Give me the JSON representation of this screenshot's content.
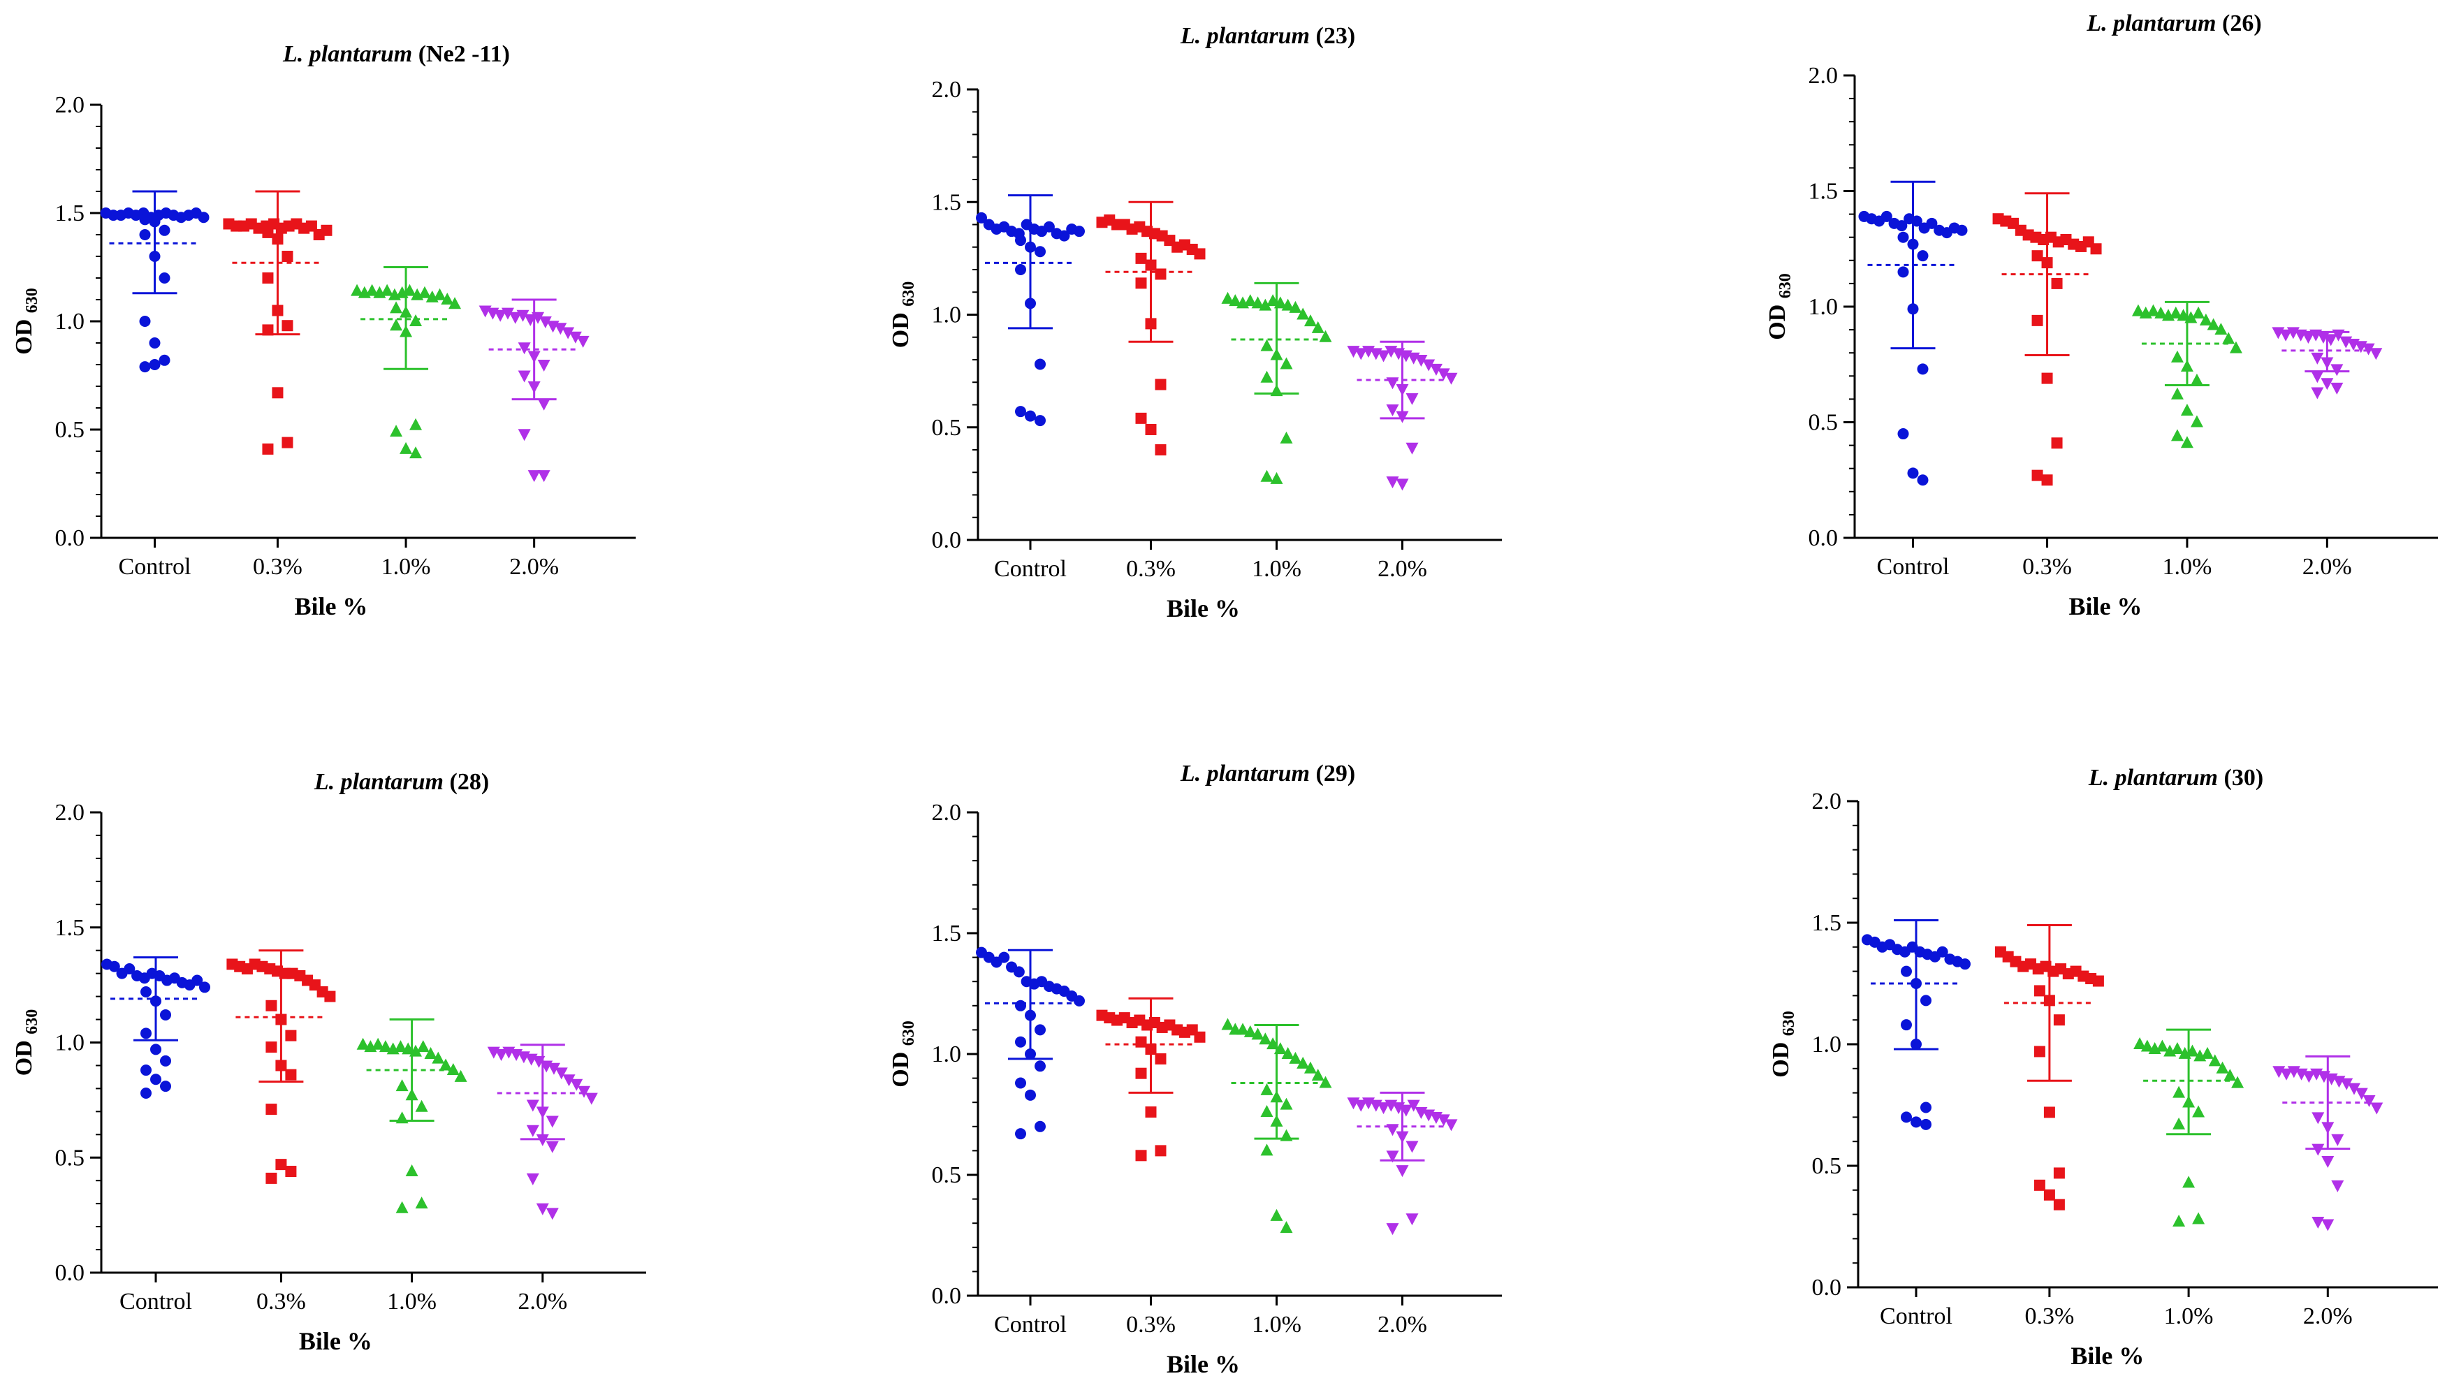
{
  "figure": {
    "ylabel": "OD",
    "ylabel_subscript": "630",
    "xlabel": "Bile %",
    "series_colors": {
      "Control": "#0a14d8",
      "0.3%": "#e8141a",
      "1.0%": "#2cc12c",
      "2.0%": "#b030e8"
    }
  },
  "chart_data": [
    {
      "type": "scatter",
      "title_italic": "L. plantarum",
      "title_suffix": " (Ne2 -11)",
      "xlabel": "Bile %",
      "ylabel": "OD 630",
      "ylim": [
        0,
        2.0
      ],
      "yticks": [
        "0.0",
        "0.5",
        "1.0",
        "1.5",
        "2.0"
      ],
      "categories": [
        "Control",
        "0.3%",
        "1.0%",
        "2.0%"
      ],
      "series": [
        {
          "name": "Control",
          "color": "#0a14d8",
          "marker": "circle",
          "mean": 1.36,
          "sd_upper": 1.6,
          "sd_lower": 1.13,
          "dash_color": "#0a14d8",
          "values": [
            1.5,
            1.49,
            1.49,
            1.5,
            1.49,
            1.5,
            1.48,
            1.49,
            1.5,
            1.49,
            1.48,
            1.49,
            1.5,
            1.48,
            1.47,
            1.46,
            1.42,
            1.4,
            1.3,
            1.2,
            1.0,
            0.9,
            0.82,
            0.79,
            0.8
          ]
        },
        {
          "name": "0.3%",
          "color": "#e8141a",
          "marker": "square",
          "mean": 1.27,
          "sd_upper": 1.6,
          "sd_lower": 0.94,
          "dash_color": "#e8141a",
          "values": [
            1.45,
            1.44,
            1.44,
            1.45,
            1.43,
            1.44,
            1.45,
            1.43,
            1.44,
            1.45,
            1.43,
            1.44,
            1.4,
            1.42,
            1.41,
            1.38,
            1.3,
            1.2,
            1.05,
            0.98,
            0.96,
            0.67,
            0.44,
            0.41
          ]
        },
        {
          "name": "1.0%",
          "color": "#2cc12c",
          "marker": "triangle-up",
          "mean": 1.01,
          "sd_upper": 1.25,
          "sd_lower": 0.78,
          "dash_color": "#2cc12c",
          "values": [
            1.14,
            1.13,
            1.14,
            1.13,
            1.14,
            1.12,
            1.13,
            1.14,
            1.12,
            1.13,
            1.11,
            1.12,
            1.1,
            1.08,
            1.06,
            1.04,
            1.0,
            0.98,
            0.95,
            0.52,
            0.49,
            0.41,
            0.39
          ]
        },
        {
          "name": "2.0%",
          "color": "#b030e8",
          "marker": "triangle-down",
          "mean": 0.87,
          "sd_upper": 1.1,
          "sd_lower": 0.64,
          "dash_color": "#b030e8",
          "values": [
            1.05,
            1.04,
            1.03,
            1.04,
            1.02,
            1.03,
            1.01,
            1.02,
            1.0,
            0.98,
            0.97,
            0.95,
            0.93,
            0.91,
            0.88,
            0.84,
            0.8,
            0.75,
            0.7,
            0.62,
            0.48,
            0.29,
            0.29
          ]
        }
      ]
    },
    {
      "type": "scatter",
      "title_italic": "L. plantarum",
      "title_suffix": " (23)",
      "xlabel": "Bile %",
      "ylabel": "OD 630",
      "ylim": [
        0,
        2.0
      ],
      "yticks": [
        "0.0",
        "0.5",
        "1.0",
        "1.5",
        "2.0"
      ],
      "categories": [
        "Control",
        "0.3%",
        "1.0%",
        "2.0%"
      ],
      "series": [
        {
          "name": "Control",
          "color": "#0a14d8",
          "marker": "circle",
          "mean": 1.23,
          "sd_upper": 1.53,
          "sd_lower": 0.94,
          "dash_color": "#0a14d8",
          "values": [
            1.43,
            1.4,
            1.38,
            1.39,
            1.37,
            1.36,
            1.4,
            1.38,
            1.37,
            1.39,
            1.36,
            1.35,
            1.38,
            1.37,
            1.33,
            1.3,
            1.28,
            1.2,
            1.05,
            0.78,
            0.57,
            0.55,
            0.53
          ]
        },
        {
          "name": "0.3%",
          "color": "#e8141a",
          "marker": "square",
          "mean": 1.19,
          "sd_upper": 1.5,
          "sd_lower": 0.88,
          "dash_color": "#e8141a",
          "values": [
            1.41,
            1.42,
            1.4,
            1.4,
            1.38,
            1.39,
            1.37,
            1.36,
            1.35,
            1.33,
            1.3,
            1.31,
            1.29,
            1.27,
            1.25,
            1.22,
            1.18,
            1.14,
            0.96,
            0.69,
            0.54,
            0.49,
            0.4
          ]
        },
        {
          "name": "1.0%",
          "color": "#2cc12c",
          "marker": "triangle-up",
          "mean": 0.89,
          "sd_upper": 1.14,
          "sd_lower": 0.65,
          "dash_color": "#2cc12c",
          "values": [
            1.07,
            1.06,
            1.05,
            1.06,
            1.05,
            1.04,
            1.06,
            1.05,
            1.04,
            1.03,
            1.0,
            0.97,
            0.94,
            0.9,
            0.86,
            0.82,
            0.78,
            0.72,
            0.66,
            0.45,
            0.28,
            0.27
          ]
        },
        {
          "name": "2.0%",
          "color": "#b030e8",
          "marker": "triangle-down",
          "mean": 0.71,
          "sd_upper": 0.88,
          "sd_lower": 0.54,
          "dash_color": "#b030e8",
          "values": [
            0.84,
            0.83,
            0.84,
            0.83,
            0.82,
            0.84,
            0.83,
            0.82,
            0.81,
            0.8,
            0.78,
            0.76,
            0.74,
            0.72,
            0.7,
            0.67,
            0.63,
            0.58,
            0.55,
            0.41,
            0.26,
            0.25
          ]
        }
      ]
    },
    {
      "type": "scatter",
      "title_italic": "L. plantarum",
      "title_suffix": " (26)",
      "xlabel": "Bile %",
      "ylabel": "OD 630",
      "ylim": [
        0,
        2.0
      ],
      "yticks": [
        "0.0",
        "0.5",
        "1.0",
        "1.5",
        "2.0"
      ],
      "categories": [
        "Control",
        "0.3%",
        "1.0%",
        "2.0%"
      ],
      "series": [
        {
          "name": "Control",
          "color": "#0a14d8",
          "marker": "circle",
          "mean": 1.18,
          "sd_upper": 1.54,
          "sd_lower": 0.82,
          "dash_color": "#0a14d8",
          "values": [
            1.39,
            1.38,
            1.37,
            1.39,
            1.36,
            1.35,
            1.38,
            1.37,
            1.34,
            1.36,
            1.33,
            1.32,
            1.34,
            1.33,
            1.3,
            1.27,
            1.22,
            1.15,
            0.99,
            0.73,
            0.45,
            0.28,
            0.25
          ]
        },
        {
          "name": "0.3%",
          "color": "#e8141a",
          "marker": "square",
          "mean": 1.14,
          "sd_upper": 1.49,
          "sd_lower": 0.79,
          "dash_color": "#e8141a",
          "values": [
            1.38,
            1.37,
            1.36,
            1.33,
            1.31,
            1.3,
            1.29,
            1.3,
            1.28,
            1.29,
            1.27,
            1.26,
            1.28,
            1.25,
            1.22,
            1.19,
            1.1,
            0.94,
            0.69,
            0.41,
            0.27,
            0.25
          ]
        },
        {
          "name": "1.0%",
          "color": "#2cc12c",
          "marker": "triangle-up",
          "mean": 0.84,
          "sd_upper": 1.02,
          "sd_lower": 0.66,
          "dash_color": "#2cc12c",
          "values": [
            0.98,
            0.97,
            0.98,
            0.97,
            0.96,
            0.97,
            0.96,
            0.95,
            0.97,
            0.94,
            0.92,
            0.9,
            0.86,
            0.82,
            0.78,
            0.74,
            0.68,
            0.62,
            0.55,
            0.5,
            0.44,
            0.41
          ]
        },
        {
          "name": "2.0%",
          "color": "#b030e8",
          "marker": "triangle-down",
          "mean": 0.81,
          "sd_upper": 0.89,
          "sd_lower": 0.72,
          "dash_color": "#b030e8",
          "values": [
            0.89,
            0.88,
            0.89,
            0.88,
            0.87,
            0.88,
            0.87,
            0.86,
            0.88,
            0.85,
            0.84,
            0.83,
            0.82,
            0.8,
            0.78,
            0.76,
            0.73,
            0.7,
            0.67,
            0.65,
            0.63
          ]
        }
      ]
    },
    {
      "type": "scatter",
      "title_italic": "L. plantarum",
      "title_suffix": " (28)",
      "xlabel": "Bile %",
      "ylabel": "OD 630",
      "ylim": [
        0,
        2.0
      ],
      "yticks": [
        "0.0",
        "0.5",
        "1.0",
        "1.5",
        "2.0"
      ],
      "categories": [
        "Control",
        "0.3%",
        "1.0%",
        "2.0%"
      ],
      "series": [
        {
          "name": "Control",
          "color": "#0a14d8",
          "marker": "circle",
          "mean": 1.19,
          "sd_upper": 1.37,
          "sd_lower": 1.01,
          "dash_color": "#0a14d8",
          "values": [
            1.34,
            1.33,
            1.3,
            1.32,
            1.29,
            1.28,
            1.3,
            1.29,
            1.27,
            1.28,
            1.26,
            1.25,
            1.27,
            1.24,
            1.22,
            1.18,
            1.12,
            1.04,
            0.97,
            0.92,
            0.88,
            0.84,
            0.81,
            0.78
          ]
        },
        {
          "name": "0.3%",
          "color": "#e8141a",
          "marker": "square",
          "mean": 1.11,
          "sd_upper": 1.4,
          "sd_lower": 0.83,
          "dash_color": "#e8141a",
          "values": [
            1.34,
            1.33,
            1.32,
            1.34,
            1.33,
            1.32,
            1.31,
            1.3,
            1.3,
            1.29,
            1.27,
            1.25,
            1.22,
            1.2,
            1.16,
            1.1,
            1.03,
            0.98,
            0.9,
            0.86,
            0.71,
            0.47,
            0.44,
            0.41
          ]
        },
        {
          "name": "1.0%",
          "color": "#2cc12c",
          "marker": "triangle-up",
          "mean": 0.88,
          "sd_upper": 1.1,
          "sd_lower": 0.66,
          "dash_color": "#2cc12c",
          "values": [
            0.99,
            0.98,
            0.99,
            0.98,
            0.97,
            0.98,
            0.97,
            0.96,
            0.98,
            0.95,
            0.93,
            0.9,
            0.88,
            0.85,
            0.81,
            0.77,
            0.72,
            0.67,
            0.44,
            0.3,
            0.28
          ]
        },
        {
          "name": "2.0%",
          "color": "#b030e8",
          "marker": "triangle-down",
          "mean": 0.78,
          "sd_upper": 0.99,
          "sd_lower": 0.58,
          "dash_color": "#b030e8",
          "values": [
            0.96,
            0.95,
            0.96,
            0.95,
            0.94,
            0.93,
            0.92,
            0.9,
            0.89,
            0.87,
            0.84,
            0.82,
            0.79,
            0.76,
            0.73,
            0.7,
            0.66,
            0.62,
            0.58,
            0.55,
            0.41,
            0.28,
            0.26
          ]
        }
      ]
    },
    {
      "type": "scatter",
      "title_italic": "L. plantarum",
      "title_suffix": " (29)",
      "xlabel": "Bile %",
      "ylabel": "OD 630",
      "ylim": [
        0,
        2.0
      ],
      "yticks": [
        "0.0",
        "0.5",
        "1.0",
        "1.5",
        "2.0"
      ],
      "categories": [
        "Control",
        "0.3%",
        "1.0%",
        "2.0%"
      ],
      "series": [
        {
          "name": "Control",
          "color": "#0a14d8",
          "marker": "circle",
          "mean": 1.21,
          "sd_upper": 1.43,
          "sd_lower": 0.98,
          "dash_color": "#0a14d8",
          "values": [
            1.42,
            1.4,
            1.38,
            1.4,
            1.36,
            1.34,
            1.3,
            1.29,
            1.3,
            1.28,
            1.27,
            1.26,
            1.24,
            1.22,
            1.2,
            1.16,
            1.1,
            1.05,
            1.0,
            0.95,
            0.88,
            0.83,
            0.7,
            0.67
          ]
        },
        {
          "name": "0.3%",
          "color": "#e8141a",
          "marker": "square",
          "mean": 1.04,
          "sd_upper": 1.23,
          "sd_lower": 0.84,
          "dash_color": "#e8141a",
          "values": [
            1.16,
            1.15,
            1.14,
            1.15,
            1.13,
            1.14,
            1.12,
            1.13,
            1.11,
            1.12,
            1.1,
            1.09,
            1.1,
            1.07,
            1.05,
            1.02,
            0.98,
            0.92,
            0.76,
            0.6,
            0.58
          ]
        },
        {
          "name": "1.0%",
          "color": "#2cc12c",
          "marker": "triangle-up",
          "mean": 0.88,
          "sd_upper": 1.12,
          "sd_lower": 0.65,
          "dash_color": "#2cc12c",
          "values": [
            1.12,
            1.1,
            1.1,
            1.09,
            1.08,
            1.06,
            1.04,
            1.02,
            1.0,
            0.98,
            0.96,
            0.94,
            0.91,
            0.88,
            0.85,
            0.82,
            0.79,
            0.76,
            0.72,
            0.66,
            0.6,
            0.33,
            0.28
          ]
        },
        {
          "name": "2.0%",
          "color": "#b030e8",
          "marker": "triangle-down",
          "mean": 0.7,
          "sd_upper": 0.84,
          "sd_lower": 0.56,
          "dash_color": "#b030e8",
          "values": [
            0.8,
            0.79,
            0.8,
            0.79,
            0.78,
            0.79,
            0.78,
            0.77,
            0.79,
            0.76,
            0.75,
            0.74,
            0.73,
            0.71,
            0.69,
            0.66,
            0.62,
            0.58,
            0.52,
            0.32,
            0.28
          ]
        }
      ]
    },
    {
      "type": "scatter",
      "title_italic": "L. plantarum",
      "title_suffix": " (30)",
      "xlabel": "Bile %",
      "ylabel": "OD 630",
      "ylim": [
        0,
        2.0
      ],
      "yticks": [
        "0.0",
        "0.5",
        "1.0",
        "1.5",
        "2.0"
      ],
      "categories": [
        "Control",
        "0.3%",
        "1.0%",
        "2.0%"
      ],
      "series": [
        {
          "name": "Control",
          "color": "#0a14d8",
          "marker": "circle",
          "mean": 1.25,
          "sd_upper": 1.51,
          "sd_lower": 0.98,
          "dash_color": "#0a14d8",
          "values": [
            1.43,
            1.42,
            1.4,
            1.41,
            1.39,
            1.38,
            1.4,
            1.38,
            1.37,
            1.36,
            1.38,
            1.35,
            1.34,
            1.33,
            1.3,
            1.25,
            1.18,
            1.08,
            1.0,
            0.74,
            0.7,
            0.68,
            0.67
          ]
        },
        {
          "name": "0.3%",
          "color": "#e8141a",
          "marker": "square",
          "mean": 1.17,
          "sd_upper": 1.49,
          "sd_lower": 0.85,
          "dash_color": "#e8141a",
          "values": [
            1.38,
            1.36,
            1.34,
            1.32,
            1.33,
            1.31,
            1.32,
            1.3,
            1.31,
            1.29,
            1.3,
            1.28,
            1.27,
            1.26,
            1.22,
            1.18,
            1.1,
            0.97,
            0.72,
            0.47,
            0.42,
            0.38,
            0.34
          ]
        },
        {
          "name": "1.0%",
          "color": "#2cc12c",
          "marker": "triangle-up",
          "mean": 0.85,
          "sd_upper": 1.06,
          "sd_lower": 0.63,
          "dash_color": "#2cc12c",
          "values": [
            1.0,
            0.99,
            0.98,
            0.99,
            0.97,
            0.98,
            0.96,
            0.97,
            0.95,
            0.96,
            0.93,
            0.9,
            0.87,
            0.84,
            0.8,
            0.76,
            0.72,
            0.67,
            0.43,
            0.28,
            0.27
          ]
        },
        {
          "name": "2.0%",
          "color": "#b030e8",
          "marker": "triangle-down",
          "mean": 0.76,
          "sd_upper": 0.95,
          "sd_lower": 0.57,
          "dash_color": "#b030e8",
          "values": [
            0.89,
            0.88,
            0.89,
            0.88,
            0.87,
            0.88,
            0.87,
            0.86,
            0.85,
            0.84,
            0.82,
            0.8,
            0.77,
            0.74,
            0.7,
            0.66,
            0.61,
            0.57,
            0.52,
            0.42,
            0.27,
            0.26
          ]
        }
      ]
    }
  ]
}
